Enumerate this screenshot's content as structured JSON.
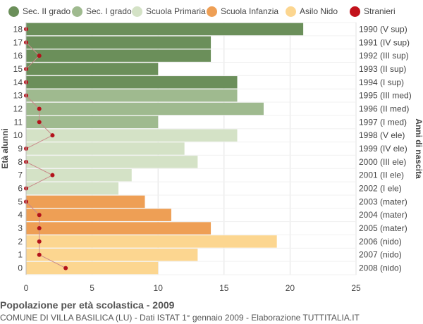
{
  "title": "Popolazione per età scolastica - 2009",
  "subtitle": "COMUNE DI VILLA BASILICA (LU) - Dati ISTAT 1° gennaio 2009 - Elaborazione TUTTITALIA.IT",
  "legend": [
    {
      "key": "sec2",
      "label": "Sec. II grado",
      "color": "#6b8f5a"
    },
    {
      "key": "sec1",
      "label": "Sec. I grado",
      "color": "#9fba8f"
    },
    {
      "key": "primaria",
      "label": "Scuola Primaria",
      "color": "#d4e2c6"
    },
    {
      "key": "infanzia",
      "label": "Scuola Infanzia",
      "color": "#ee9f55"
    },
    {
      "key": "nido",
      "label": "Asilo Nido",
      "color": "#fcd690"
    },
    {
      "key": "stranieri",
      "label": "Stranieri",
      "color": "#c2121b"
    }
  ],
  "chart_data": {
    "type": "bar",
    "orientation": "horizontal",
    "ylabel_left": "Età alunni",
    "ylabel_right": "Anni di nascita",
    "xlim": [
      0,
      25
    ],
    "xticks": [
      0,
      5,
      10,
      15,
      20,
      25
    ],
    "grid": true,
    "rows": [
      {
        "age": "18",
        "birth": "1990 (V sup)",
        "value": 21,
        "stranieri": 0,
        "group": "sec2"
      },
      {
        "age": "17",
        "birth": "1991 (IV sup)",
        "value": 14,
        "stranieri": 0,
        "group": "sec2"
      },
      {
        "age": "16",
        "birth": "1992 (III sup)",
        "value": 14,
        "stranieri": 1,
        "group": "sec2"
      },
      {
        "age": "15",
        "birth": "1993 (II sup)",
        "value": 10,
        "stranieri": 0,
        "group": "sec2"
      },
      {
        "age": "14",
        "birth": "1994 (I sup)",
        "value": 16,
        "stranieri": 0,
        "group": "sec2"
      },
      {
        "age": "13",
        "birth": "1995 (III med)",
        "value": 16,
        "stranieri": 0,
        "group": "sec1"
      },
      {
        "age": "12",
        "birth": "1996 (II med)",
        "value": 18,
        "stranieri": 1,
        "group": "sec1"
      },
      {
        "age": "11",
        "birth": "1997 (I med)",
        "value": 10,
        "stranieri": 1,
        "group": "sec1"
      },
      {
        "age": "10",
        "birth": "1998 (V ele)",
        "value": 16,
        "stranieri": 2,
        "group": "primaria"
      },
      {
        "age": "9",
        "birth": "1999 (IV ele)",
        "value": 12,
        "stranieri": 0,
        "group": "primaria"
      },
      {
        "age": "8",
        "birth": "2000 (III ele)",
        "value": 13,
        "stranieri": 0,
        "group": "primaria"
      },
      {
        "age": "7",
        "birth": "2001 (II ele)",
        "value": 8,
        "stranieri": 2,
        "group": "primaria"
      },
      {
        "age": "6",
        "birth": "2002 (I ele)",
        "value": 7,
        "stranieri": 0,
        "group": "primaria"
      },
      {
        "age": "5",
        "birth": "2003 (mater)",
        "value": 9,
        "stranieri": 0,
        "group": "infanzia"
      },
      {
        "age": "4",
        "birth": "2004 (mater)",
        "value": 11,
        "stranieri": 1,
        "group": "infanzia"
      },
      {
        "age": "3",
        "birth": "2005 (mater)",
        "value": 14,
        "stranieri": 1,
        "group": "infanzia"
      },
      {
        "age": "2",
        "birth": "2006 (nido)",
        "value": 19,
        "stranieri": 1,
        "group": "nido"
      },
      {
        "age": "1",
        "birth": "2007 (nido)",
        "value": 13,
        "stranieri": 1,
        "group": "nido"
      },
      {
        "age": "0",
        "birth": "2008 (nido)",
        "value": 10,
        "stranieri": 3,
        "group": "nido"
      }
    ]
  }
}
